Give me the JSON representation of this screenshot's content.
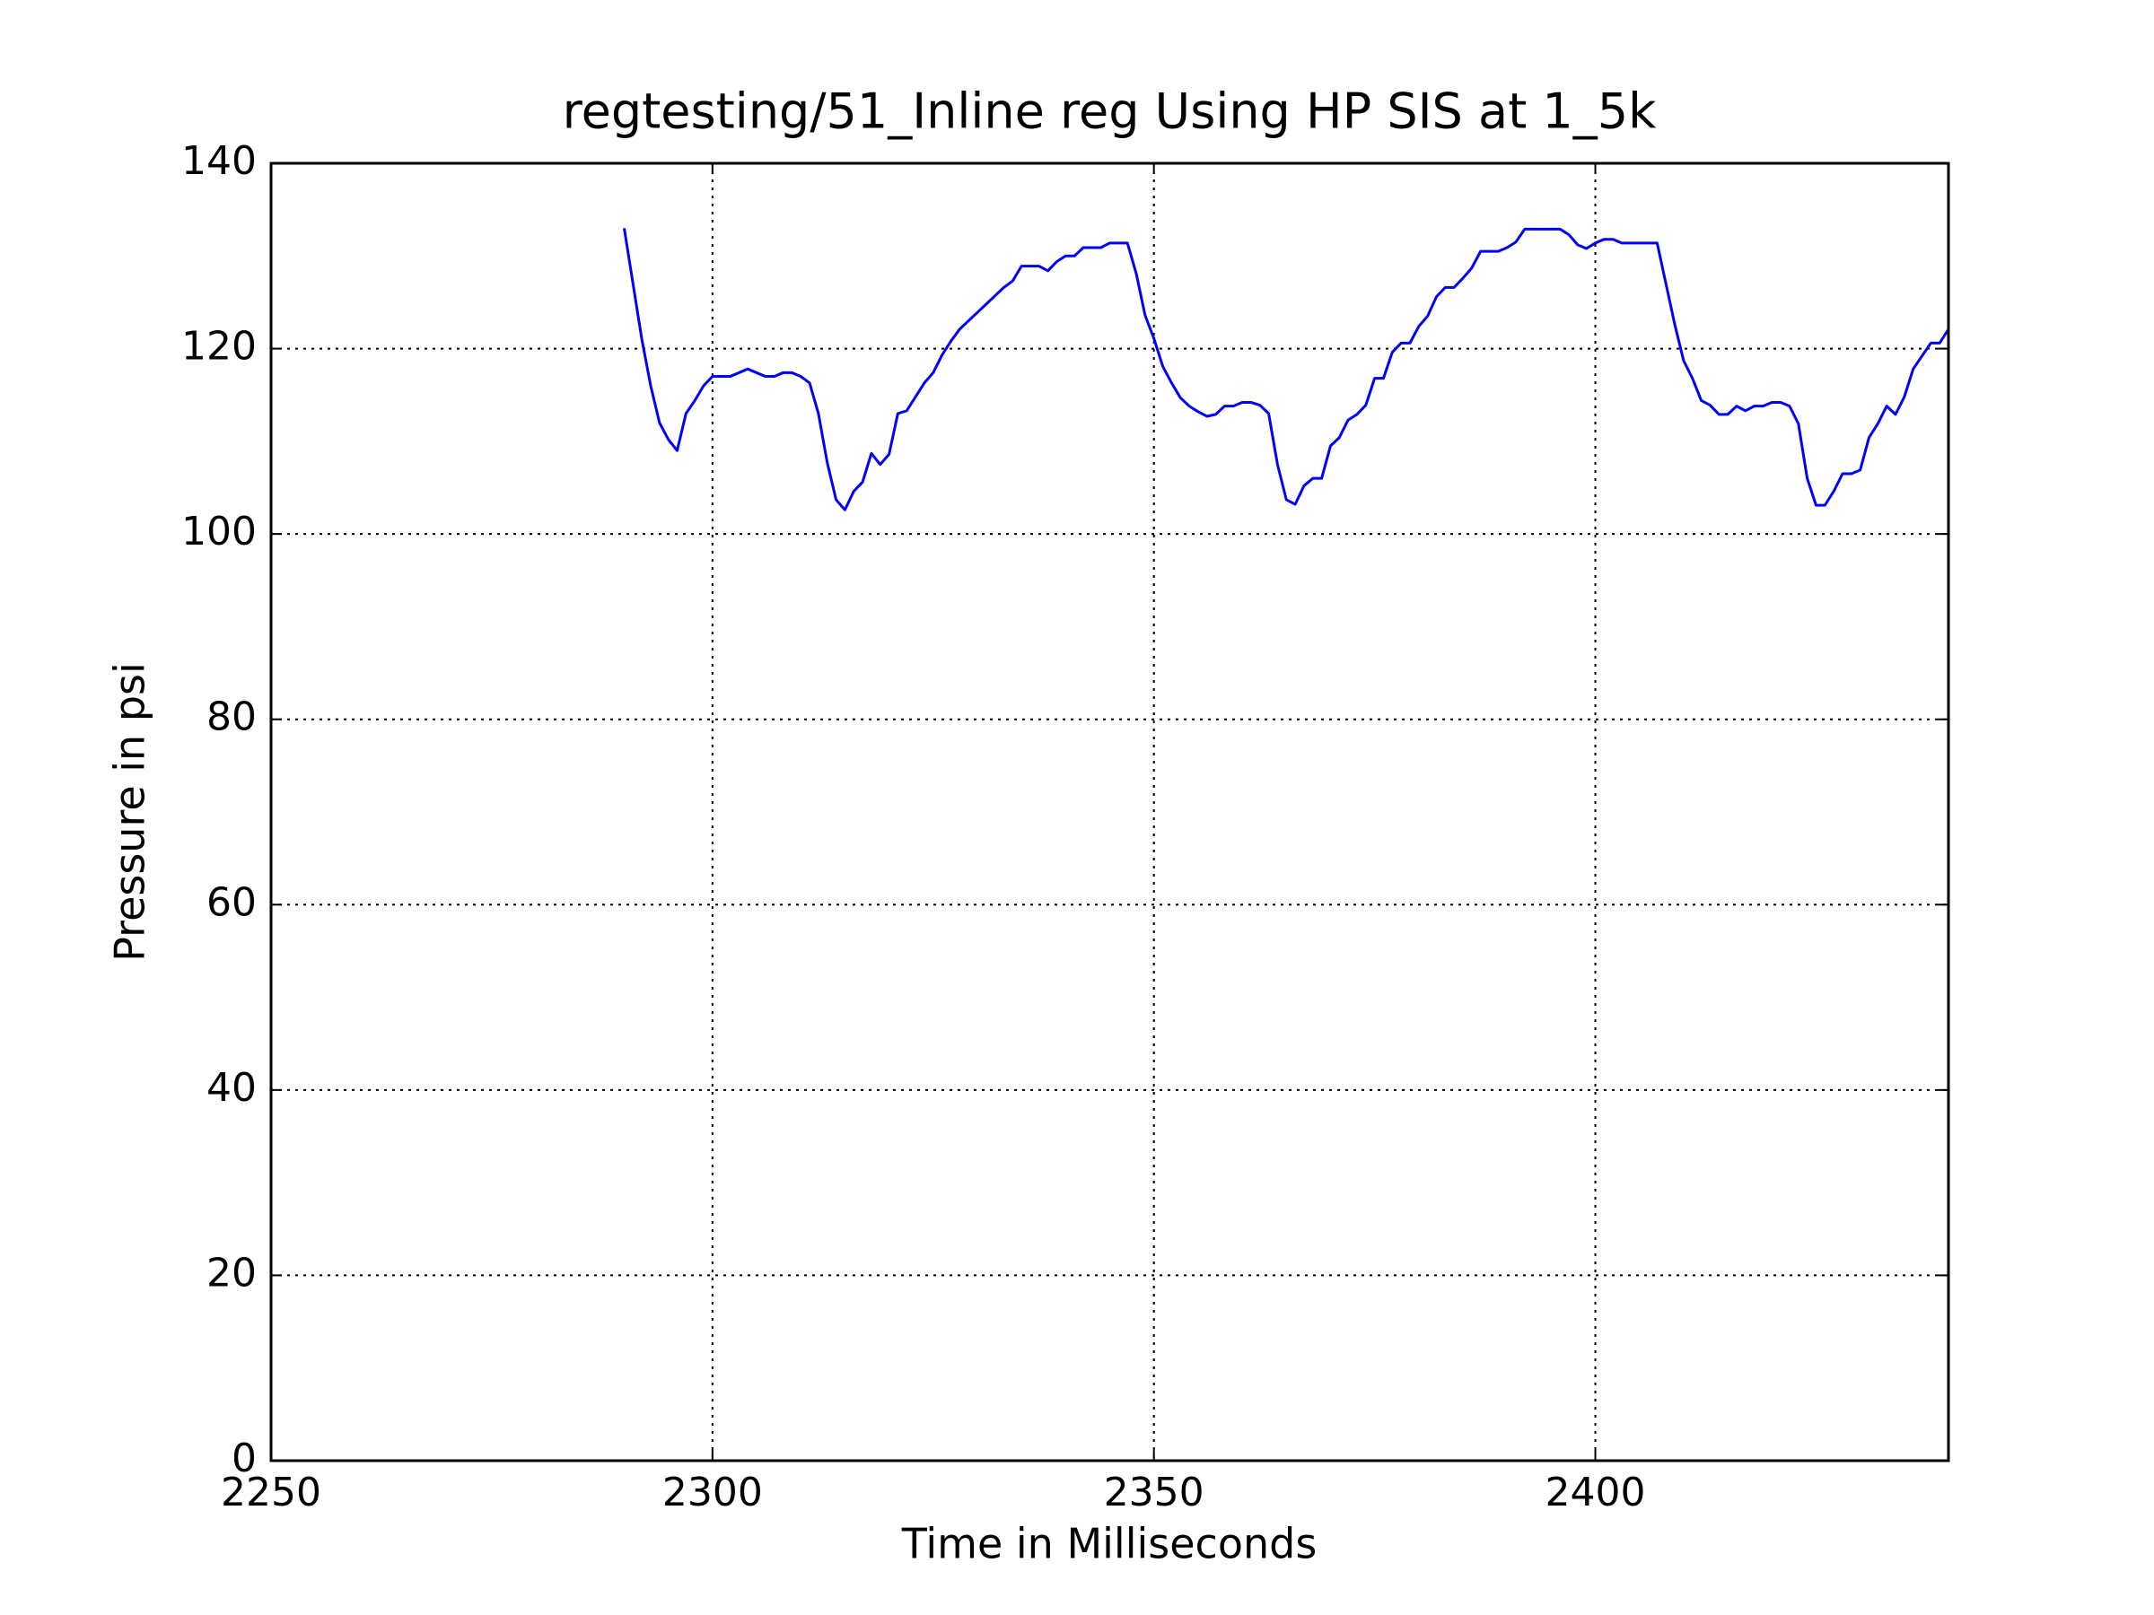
{
  "chart_data": {
    "type": "line",
    "title": "regtesting/51_Inline reg Using HP SIS at 1_5k",
    "x_label": "Time in Milliseconds",
    "y_label": "Pressure in psi",
    "xlim": [
      2250,
      2440
    ],
    "xticks": [
      2250,
      2300,
      2350,
      2400
    ],
    "ylim": [
      0,
      140
    ],
    "yticks": [
      0,
      20,
      40,
      60,
      80,
      100,
      120,
      140
    ],
    "grid": true,
    "x": [
      2290,
      2291,
      2292,
      2293,
      2294,
      2295,
      2296,
      2297,
      2298,
      2299,
      2300,
      2301,
      2302,
      2303,
      2304,
      2305,
      2306,
      2307,
      2308,
      2309,
      2310,
      2311,
      2312,
      2313,
      2314,
      2315,
      2316,
      2317,
      2318,
      2319,
      2320,
      2321,
      2322,
      2323,
      2324,
      2325,
      2326,
      2327,
      2328,
      2329,
      2330,
      2331,
      2332,
      2333,
      2334,
      2335,
      2336,
      2337,
      2338,
      2339,
      2340,
      2341,
      2342,
      2343,
      2344,
      2345,
      2346,
      2347,
      2348,
      2349,
      2350,
      2351,
      2352,
      2353,
      2354,
      2355,
      2356,
      2357,
      2358,
      2359,
      2360,
      2361,
      2362,
      2363,
      2364,
      2365,
      2366,
      2367,
      2368,
      2369,
      2370,
      2371,
      2372,
      2373,
      2374,
      2375,
      2376,
      2377,
      2378,
      2379,
      2380,
      2381,
      2382,
      2383,
      2384,
      2385,
      2386,
      2387,
      2388,
      2389,
      2390,
      2391,
      2392,
      2393,
      2394,
      2395,
      2396,
      2397,
      2398,
      2399,
      2400,
      2401,
      2402,
      2403,
      2404,
      2405,
      2406,
      2407,
      2408,
      2409,
      2410,
      2411,
      2412,
      2413,
      2414,
      2415,
      2416,
      2417,
      2418,
      2419,
      2420,
      2421,
      2422,
      2423,
      2424,
      2425,
      2426,
      2427,
      2428,
      2429,
      2430,
      2431,
      2432,
      2433,
      2434,
      2435,
      2436,
      2437,
      2438,
      2439,
      2440
    ],
    "series": [
      {
        "color": "#0000ff",
        "values": [
          133,
          127,
          121,
          116,
          112,
          110.2,
          109,
          113,
          114.4,
          116,
          117,
          117,
          117,
          117.4,
          117.8,
          117.4,
          117,
          117,
          117.4,
          117.4,
          117,
          116.3,
          113,
          107.7,
          103.7,
          102.6,
          104.6,
          105.6,
          108.7,
          107.5,
          108.6,
          113,
          113.3,
          114.8,
          116.3,
          117.4,
          119.3,
          120.8,
          122.1,
          123,
          123.9,
          124.8,
          125.7,
          126.6,
          127.3,
          128.9,
          128.9,
          128.9,
          128.4,
          129.4,
          130,
          130,
          130.9,
          130.9,
          130.9,
          131.4,
          131.4,
          131.4,
          128.1,
          123.6,
          121.1,
          118.1,
          116.3,
          114.7,
          113.8,
          113.2,
          112.7,
          112.9,
          113.8,
          113.8,
          114.2,
          114.2,
          113.9,
          113,
          107.5,
          103.7,
          103.2,
          105.2,
          106,
          106,
          109.5,
          110.4,
          112.3,
          112.9,
          113.9,
          116.8,
          116.8,
          119.6,
          120.6,
          120.6,
          122.4,
          123.5,
          125.6,
          126.6,
          126.6,
          127.6,
          128.7,
          130.5,
          130.5,
          130.5,
          130.9,
          131.5,
          132.9,
          132.9,
          132.9,
          132.9,
          132.9,
          132.3,
          131.2,
          130.8,
          131.4,
          131.8,
          131.8,
          131.4,
          131.4,
          131.4,
          131.4,
          131.4,
          127,
          122.6,
          118.7,
          116.8,
          114.4,
          113.9,
          112.9,
          112.9,
          113.8,
          113.3,
          113.8,
          113.8,
          114.2,
          114.2,
          113.8,
          111.9,
          106,
          103.1,
          103.1,
          104.6,
          106.5,
          106.5,
          106.9,
          110.4,
          111.9,
          113.8,
          112.9,
          114.8,
          117.8,
          119.2,
          120.6,
          120.6,
          122.1
        ]
      }
    ]
  }
}
